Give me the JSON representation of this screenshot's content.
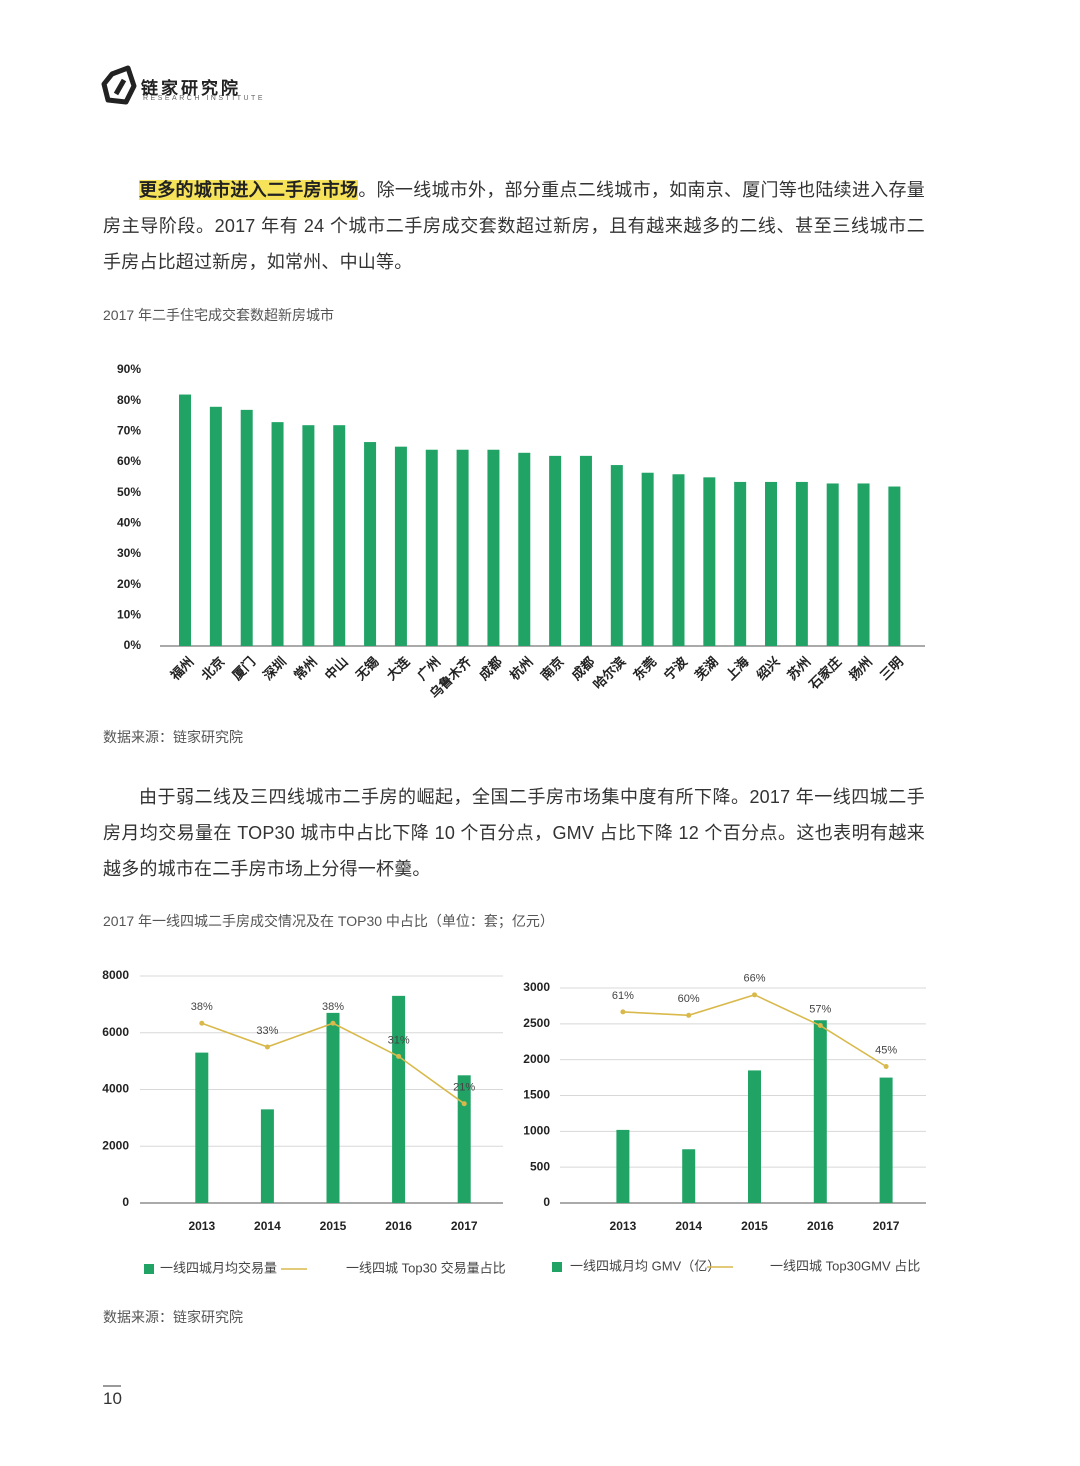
{
  "header": {
    "brand": "链家研究院",
    "subtitle": "RESEARCH INSTITUTE"
  },
  "paragraphs": [
    {
      "highlight": "更多的城市进入二手房市场",
      "text": "。除一线城市外，部分重点二线城市，如南京、厦门等也陆续进入存量房主导阶段。2017 年有 24 个城市二手房成交套数超过新房，且有越来越多的二线、甚至三线城市二手房占比超过新房，如常州、中山等。"
    },
    {
      "text": "由于弱二线及三四线城市二手房的崛起，全国二手房市场集中度有所下降。2017 年一线四城二手房月均交易量在 TOP30 城市中占比下降 10 个百分点，GMV 占比下降 12 个百分点。这也表明有越来越多的城市在二手房市场上分得一杯羹。"
    }
  ],
  "figure_titles": [
    "2017 年二手住宅成交套数超新房城市",
    "2017 年一线四城二手房成交情况及在 TOP30 中占比（单位：套；亿元）"
  ],
  "chart_data": [
    {
      "type": "bar",
      "categories": [
        "福州",
        "北京",
        "厦门",
        "深圳",
        "常州",
        "中山",
        "无锡",
        "大连",
        "广州",
        "乌鲁木齐",
        "成都",
        "杭州",
        "南京",
        "成都",
        "哈尔滨",
        "东莞",
        "宁波",
        "芜湖",
        "上海",
        "绍兴",
        "苏州",
        "石家庄",
        "扬州",
        "三明"
      ],
      "values": [
        82,
        78,
        77,
        73,
        72,
        72,
        66.5,
        65,
        64,
        64,
        64,
        63,
        62,
        62,
        59,
        56.5,
        56,
        55,
        53.5,
        53.5,
        53.5,
        53,
        53,
        52
      ],
      "color": "#21a366",
      "ylim": [
        0,
        90
      ],
      "yticks": [
        {
          "value": 0,
          "label": "0%"
        },
        {
          "value": 10,
          "label": "10%"
        },
        {
          "value": 20,
          "label": "20%"
        },
        {
          "value": 30,
          "label": "30%"
        },
        {
          "value": 40,
          "label": "40%"
        },
        {
          "value": 50,
          "label": "50%"
        },
        {
          "value": 60,
          "label": "60%"
        },
        {
          "value": 70,
          "label": "70%"
        },
        {
          "value": 80,
          "label": "80%"
        },
        {
          "value": 90,
          "label": "90%"
        }
      ],
      "grid": false
    },
    {
      "type": "bar_line",
      "categories": [
        "2013",
        "2014",
        "2015",
        "2016",
        "2017"
      ],
      "series": [
        {
          "name": "一线四城月均交易量",
          "type": "bar",
          "color": "#21a366",
          "values": [
            5300,
            3300,
            6700,
            7300,
            4500
          ]
        },
        {
          "name": "一线四城 Top30 交易量占比",
          "type": "line",
          "axis": "y2",
          "color": "#d9b94c",
          "values": [
            38,
            33,
            38,
            31,
            21
          ],
          "value_labels": [
            "38%",
            "33%",
            "38%",
            "31%",
            "21%"
          ]
        }
      ],
      "ylim": [
        0,
        8000
      ],
      "yticks": [
        0,
        2000,
        4000,
        6000,
        8000
      ],
      "y2lim": [
        0,
        48
      ],
      "grid": true
    },
    {
      "type": "bar_line",
      "categories": [
        "2013",
        "2014",
        "2015",
        "2016",
        "2017"
      ],
      "series": [
        {
          "name": "一线四城月均 GMV（亿）",
          "type": "bar",
          "color": "#21a366",
          "values": [
            1020,
            750,
            1850,
            2550,
            1750
          ]
        },
        {
          "name": "一线四城 Top30GMV 占比",
          "type": "line",
          "axis": "y2",
          "color": "#d9b94c",
          "values": [
            61,
            60,
            66,
            57,
            45
          ],
          "value_labels": [
            "61%",
            "60%",
            "66%",
            "57%",
            "45%"
          ]
        }
      ],
      "ylim": [
        0,
        3000
      ],
      "yticks": [
        0,
        500,
        1000,
        1500,
        2000,
        2500,
        3000
      ],
      "y2lim": [
        5,
        68
      ],
      "grid": true
    }
  ],
  "sources": [
    "数据来源：链家研究院",
    "数据来源：链家研究院"
  ],
  "page_number": "10"
}
